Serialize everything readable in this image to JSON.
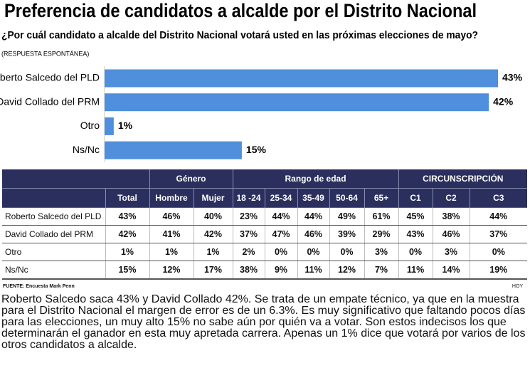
{
  "chart_data": {
    "type": "bar",
    "orientation": "horizontal",
    "title": "Preferencia de candidatos a alcalde por el Distrito Nacional",
    "subtitle": "¿Por cuál candidato a alcalde del Distrito Nacional votará usted en las próximas elecciones de mayo?",
    "note": "(RESPUESTA ESPONTÁNEA)",
    "categories": [
      "Roberto Salcedo del PLD",
      "David Collado del PRM",
      "Otro",
      "Ns/Nc"
    ],
    "values": [
      43,
      42,
      1,
      15
    ],
    "value_labels": [
      "43%",
      "42%",
      "1%",
      "15%"
    ],
    "color": "#4f8fdb"
  },
  "table": {
    "group_headers": [
      "Género",
      "Rango de edad",
      "CIRCUNSCRIPCIÓN"
    ],
    "columns": [
      "Total",
      "Hombre",
      "Mujer",
      "18 -24",
      "25-34",
      "35-49",
      "50-64",
      "65+",
      "C1",
      "C2",
      "C3"
    ],
    "rows": [
      [
        "Roberto Salcedo del PLD",
        "43%",
        "46%",
        "40%",
        "23%",
        "44%",
        "44%",
        "49%",
        "61%",
        "45%",
        "38%",
        "44%"
      ],
      [
        "David Collado del PRM",
        "42%",
        "41%",
        "42%",
        "37%",
        "47%",
        "46%",
        "39%",
        "29%",
        "43%",
        "46%",
        "37%"
      ],
      [
        "Otro",
        "1%",
        "1%",
        "1%",
        "2%",
        "0%",
        "0%",
        "0%",
        "3%",
        "0%",
        "3%",
        "0%"
      ],
      [
        "Ns/Nc",
        "15%",
        "12%",
        "17%",
        "38%",
        "9%",
        "11%",
        "12%",
        "7%",
        "11%",
        "14%",
        "19%"
      ]
    ]
  },
  "source": "FUENTE: Encuesta Mark Penn",
  "publisher": "HOY",
  "body": "Roberto Salcedo saca 43% y David Collado 42%. Se trata de un empate técnico, ya que en la muestra para el Distrito Nacional el margen de error es de un 6.3%. Es muy significativo que faltando pocos días para las elecciones, un muy alto 15% no sabe aún por quién va a votar. Son estos indecisos los que determinarán el ganador en esta muy apretada carrera. Apenas un 1% dice que votará por varios de los otros candidatos a alcalde."
}
